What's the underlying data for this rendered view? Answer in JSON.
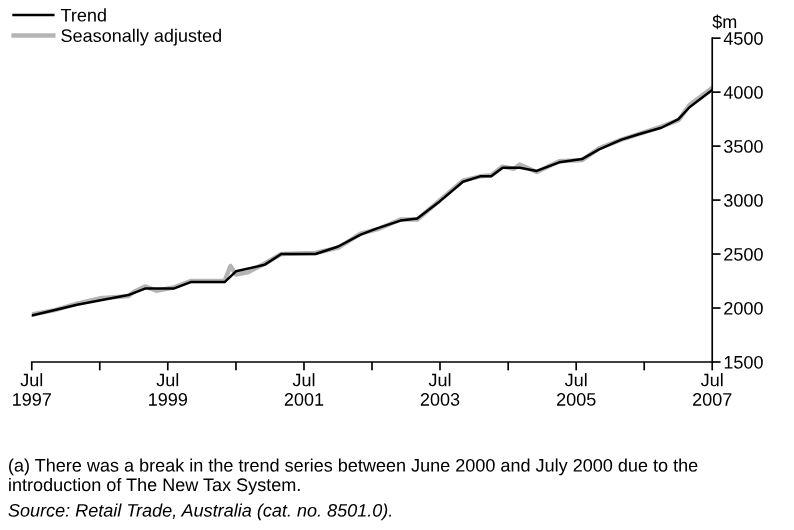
{
  "chart_data": {
    "type": "line",
    "ylabel": "$m",
    "series": [
      {
        "name": "Trend",
        "color": "#000000",
        "x": [
          "1997-07",
          "1998-03",
          "1998-12",
          "1999-03",
          "1999-08",
          "1999-11",
          "2000-05",
          "2000-07",
          "2000-12",
          "2001-03",
          "2001-09",
          "2002-01",
          "2002-05",
          "2002-08",
          "2002-12",
          "2003-03",
          "2003-07",
          "2003-11",
          "2004-02",
          "2004-04",
          "2004-06",
          "2004-09",
          "2004-12",
          "2005-04",
          "2005-08",
          "2005-11",
          "2006-03",
          "2006-06",
          "2006-10",
          "2007-01",
          "2007-03",
          "2007-07"
        ],
        "values": [
          1930,
          2030,
          2120,
          2180,
          2180,
          2240,
          2240,
          2340,
          2400,
          2500,
          2500,
          2570,
          2680,
          2740,
          2810,
          2830,
          2990,
          3170,
          3220,
          3220,
          3300,
          3300,
          3270,
          3350,
          3380,
          3470,
          3560,
          3610,
          3670,
          3750,
          3860,
          4020
        ]
      },
      {
        "name": "Seasonally adjusted",
        "color": "#b4b4b4",
        "x": [
          "1997-07",
          "1997-11",
          "1998-03",
          "1998-07",
          "1998-12",
          "1999-01",
          "1999-03",
          "1999-05",
          "1999-08",
          "1999-11",
          "2000-02",
          "2000-05",
          "2000-06",
          "2000-07",
          "2000-09",
          "2000-12",
          "2001-03",
          "2001-09",
          "2002-01",
          "2002-05",
          "2002-08",
          "2002-12",
          "2003-03",
          "2003-07",
          "2003-11",
          "2004-02",
          "2004-04",
          "2004-06",
          "2004-08",
          "2004-09",
          "2004-12",
          "2005-04",
          "2005-08",
          "2005-11",
          "2006-03",
          "2006-06",
          "2006-10",
          "2007-01",
          "2007-03",
          "2007-07"
        ],
        "values": [
          1940,
          1980,
          2040,
          2090,
          2110,
          2150,
          2200,
          2160,
          2190,
          2250,
          2250,
          2250,
          2390,
          2310,
          2330,
          2410,
          2500,
          2510,
          2560,
          2690,
          2730,
          2820,
          2820,
          3000,
          3180,
          3220,
          3230,
          3310,
          3290,
          3330,
          3260,
          3360,
          3370,
          3480,
          3560,
          3610,
          3680,
          3740,
          3880,
          4040
        ]
      }
    ],
    "xlim": [
      "1997-07",
      "2007-07"
    ],
    "xticks": [
      {
        "value": "1997-07",
        "label": "Jul\n1997"
      },
      {
        "value": "1998-07",
        "label": null
      },
      {
        "value": "1999-07",
        "label": "Jul\n1999"
      },
      {
        "value": "2000-07",
        "label": null
      },
      {
        "value": "2001-07",
        "label": "Jul\n2001"
      },
      {
        "value": "2002-07",
        "label": null
      },
      {
        "value": "2003-07",
        "label": "Jul\n2003"
      },
      {
        "value": "2004-07",
        "label": null
      },
      {
        "value": "2005-07",
        "label": "Jul\n2005"
      },
      {
        "value": "2006-07",
        "label": null
      },
      {
        "value": "2007-07",
        "label": "Jul\n2007"
      }
    ],
    "ylim": [
      1500,
      4500
    ],
    "yticks": [
      1500,
      2000,
      2500,
      3000,
      3500,
      4000,
      4500
    ],
    "grid": false,
    "legend": "top left",
    "marker": "none",
    "line_style": "solid",
    "annotations": [
      "(a) There was a break in the trend series between June 2000 and July 2000 due to the introduction of The New Tax System.",
      "Source: Retail Trade, Australia (cat. no. 8501.0)."
    ]
  }
}
